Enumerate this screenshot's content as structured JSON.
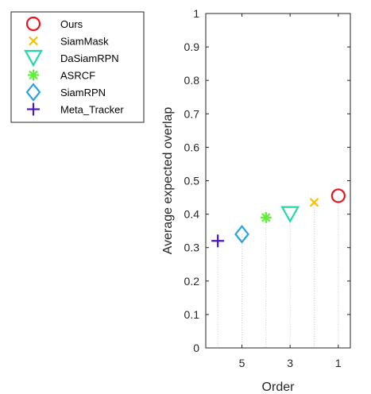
{
  "chart_data": {
    "type": "scatter",
    "title": "",
    "xlabel": "Order",
    "ylabel": "Average expected overlap",
    "xlim": [
      0.5,
      6.5
    ],
    "ylim": [
      0,
      1
    ],
    "x_axis_reversed": true,
    "x_ticks": [
      5,
      3,
      1
    ],
    "x_tick_labels": [
      "5",
      "3",
      "1"
    ],
    "y_ticks": [
      0,
      0.1,
      0.2,
      0.3,
      0.4,
      0.5,
      0.6,
      0.7,
      0.8,
      0.9,
      1
    ],
    "y_tick_labels": [
      "0",
      "0.1",
      "0.2",
      "0.3",
      "0.4",
      "0.5",
      "0.6",
      "0.7",
      "0.8",
      "0.9",
      "1"
    ],
    "grid": false,
    "legend_position": "outside-top-left",
    "dropline_style": "dotted",
    "series": [
      {
        "name": "Ours",
        "x": 1,
        "y": 0.455,
        "marker": "circle",
        "color": "#e8131b"
      },
      {
        "name": "SiamMask",
        "x": 2,
        "y": 0.435,
        "marker": "x",
        "color": "#f5c000"
      },
      {
        "name": "DaSiamRPN",
        "x": 3,
        "y": 0.4,
        "marker": "triangle-down",
        "color": "#22d8a8"
      },
      {
        "name": "ASRCF",
        "x": 4,
        "y": 0.39,
        "marker": "asterisk",
        "color": "#5ef038"
      },
      {
        "name": "SiamRPN",
        "x": 5,
        "y": 0.34,
        "marker": "diamond",
        "color": "#2aa0e6"
      },
      {
        "name": "Meta_Tracker",
        "x": 6,
        "y": 0.32,
        "marker": "plus",
        "color": "#4b16c8"
      }
    ]
  }
}
